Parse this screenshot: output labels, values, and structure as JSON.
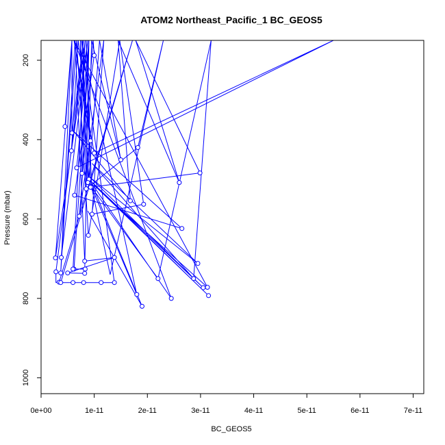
{
  "chart_data": {
    "type": "line",
    "title": "ATOM2 Northeast_Pacific_1 BC_GEOS5",
    "xlabel": "BC_GEOS5",
    "ylabel": "Pressure (mbar)",
    "xlim": [
      0,
      7.2e-11
    ],
    "ylim": [
      1040,
      150
    ],
    "y_reversed": true,
    "x_ticks": [
      0,
      1e-11,
      2e-11,
      3e-11,
      4e-11,
      5e-11,
      6e-11,
      7e-11
    ],
    "x_tick_labels": [
      "0e+00",
      "1e-11",
      "2e-11",
      "3e-11",
      "4e-11",
      "5e-11",
      "6e-11",
      "7e-11"
    ],
    "y_ticks": [
      200,
      400,
      600,
      800,
      1000
    ],
    "y_tick_labels": [
      "200",
      "400",
      "600",
      "800",
      "1000"
    ],
    "grid": false,
    "series": [
      {
        "color": "#0000ff",
        "marker": "open-circle",
        "points": [
          [
            4.5e-12,
            367
          ],
          [
            5.8e-12,
            383
          ],
          [
            1e-11,
            188
          ],
          [
            5.7e-12,
            428
          ],
          [
            9.3e-12,
            403
          ],
          [
            1e-11,
            434
          ],
          [
            6.7e-12,
            471
          ],
          [
            1.5e-11,
            451
          ],
          [
            7.7e-12,
            485
          ],
          [
            1.82e-11,
            420
          ],
          [
            9e-12,
            500
          ],
          [
            8.5e-12,
            524
          ],
          [
            8.8e-12,
            508
          ],
          [
            9.5e-12,
            520
          ],
          [
            9.3e-12,
            520
          ],
          [
            6.3e-12,
            540
          ],
          [
            1.68e-11,
            554
          ],
          [
            2.6e-11,
            508
          ],
          [
            2.99e-11,
            484
          ],
          [
            7.2e-12,
            593
          ],
          [
            9.6e-12,
            588
          ],
          [
            1.93e-11,
            563
          ],
          [
            8.9e-12,
            641
          ],
          [
            2.65e-11,
            624
          ],
          [
            2.7e-12,
            698
          ],
          [
            3.8e-12,
            697
          ],
          [
            1.38e-11,
            697
          ],
          [
            8.2e-12,
            706
          ],
          [
            6.2e-12,
            726
          ],
          [
            6e-12,
            726
          ],
          [
            8.3e-12,
            726
          ],
          [
            2.8e-12,
            733
          ],
          [
            3.7e-12,
            736
          ],
          [
            5e-12,
            736
          ],
          [
            8.2e-12,
            737
          ],
          [
            2.95e-11,
            712
          ],
          [
            2.2e-11,
            750
          ],
          [
            2.87e-11,
            750
          ],
          [
            3.05e-11,
            773
          ],
          [
            3.13e-11,
            772
          ],
          [
            3.4e-12,
            759
          ],
          [
            3.7e-12,
            760
          ],
          [
            6e-12,
            760
          ],
          [
            8e-12,
            760
          ],
          [
            1.13e-11,
            760
          ],
          [
            1.38e-11,
            760
          ],
          [
            1.8e-11,
            790
          ],
          [
            3.15e-11,
            793
          ],
          [
            2.45e-11,
            800
          ],
          [
            1.9e-11,
            820
          ]
        ],
        "path": [
          [
            4.5e-12,
            367
          ],
          [
            5.8e-12,
            150
          ],
          [
            5.8e-12,
            383
          ],
          [
            8e-12,
            150
          ],
          [
            5.7e-12,
            428
          ],
          [
            7e-12,
            150
          ],
          [
            9.3e-12,
            403
          ],
          [
            6.2e-12,
            150
          ],
          [
            1e-11,
            434
          ],
          [
            5.5e-11,
            150
          ],
          [
            6.7e-12,
            471
          ],
          [
            9e-12,
            150
          ],
          [
            7.7e-12,
            485
          ],
          [
            7.4e-12,
            150
          ],
          [
            9e-12,
            500
          ],
          [
            1.1e-11,
            150
          ],
          [
            1.5e-11,
            451
          ],
          [
            9.5e-12,
            150
          ],
          [
            8.8e-12,
            508
          ],
          [
            7.8e-12,
            150
          ],
          [
            8.5e-12,
            524
          ],
          [
            1.82e-11,
            420
          ],
          [
            2.3e-11,
            150
          ],
          [
            1.3e-11,
            740
          ],
          [
            9.5e-12,
            520
          ],
          [
            8.5e-12,
            150
          ],
          [
            9.3e-12,
            520
          ],
          [
            2.99e-11,
            484
          ],
          [
            1.78e-11,
            150
          ],
          [
            2.6e-11,
            508
          ],
          [
            1.45e-11,
            150
          ],
          [
            1.68e-11,
            554
          ],
          [
            6.2e-12,
            380
          ],
          [
            2.65e-11,
            624
          ],
          [
            6.3e-12,
            540
          ],
          [
            1e-11,
            188
          ],
          [
            9.8e-12,
            150
          ],
          [
            7.2e-12,
            593
          ],
          [
            1.18e-11,
            150
          ],
          [
            9.6e-12,
            588
          ],
          [
            1.93e-11,
            563
          ],
          [
            1.48e-11,
            150
          ],
          [
            8.9e-12,
            641
          ],
          [
            6.7e-12,
            150
          ],
          [
            3.8e-12,
            697
          ],
          [
            8.8e-12,
            150
          ],
          [
            2.7e-12,
            698
          ],
          [
            5.8e-12,
            150
          ],
          [
            3.7e-12,
            736
          ],
          [
            6.4e-12,
            150
          ],
          [
            8.2e-12,
            706
          ],
          [
            1.38e-11,
            697
          ],
          [
            5e-12,
            736
          ],
          [
            8.2e-12,
            737
          ],
          [
            9e-12,
            150
          ],
          [
            6.2e-12,
            726
          ],
          [
            8.3e-12,
            726
          ],
          [
            6e-12,
            726
          ],
          [
            8.3e-12,
            150
          ],
          [
            2.8e-12,
            733
          ],
          [
            2.8e-12,
            760
          ],
          [
            3.4e-12,
            759
          ],
          [
            1.72e-11,
            150
          ],
          [
            3.7e-12,
            760
          ],
          [
            6e-12,
            760
          ],
          [
            8e-12,
            760
          ],
          [
            1.13e-11,
            760
          ],
          [
            1.38e-11,
            760
          ],
          [
            7.6e-12,
            150
          ],
          [
            1.8e-11,
            790
          ],
          [
            9.5e-12,
            520
          ],
          [
            2.2e-11,
            750
          ],
          [
            3.2e-11,
            150
          ],
          [
            2.87e-11,
            750
          ],
          [
            9.6e-12,
            460
          ],
          [
            2.95e-11,
            712
          ],
          [
            9.2e-12,
            495
          ],
          [
            3.05e-11,
            773
          ],
          [
            9e-12,
            500
          ],
          [
            3.15e-11,
            793
          ],
          [
            1e-11,
            515
          ],
          [
            3.13e-11,
            772
          ],
          [
            6.2e-12,
            150
          ],
          [
            2.45e-11,
            800
          ],
          [
            9.5e-12,
            510
          ],
          [
            1.9e-11,
            820
          ],
          [
            8.8e-12,
            580
          ]
        ]
      }
    ]
  }
}
